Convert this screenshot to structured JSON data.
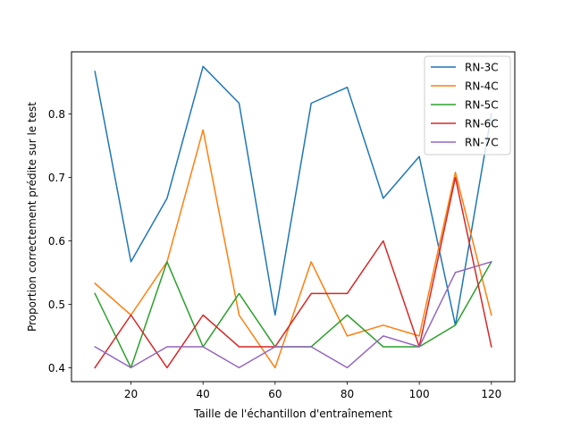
{
  "chart_data": {
    "type": "line",
    "title": "",
    "xlabel": "Taille de l'échantillon d'entraînement",
    "ylabel": "Proportion correctement prédite sur le test",
    "x": [
      10,
      20,
      30,
      40,
      50,
      60,
      70,
      80,
      90,
      100,
      110,
      120
    ],
    "xlim": [
      3.5,
      126.5
    ],
    "ylim": [
      0.378,
      0.898
    ],
    "xticks": [
      20,
      40,
      60,
      80,
      100,
      120
    ],
    "yticks": [
      0.4,
      0.5,
      0.6,
      0.7,
      0.8
    ],
    "ytick_labels": [
      "0.4",
      "0.5",
      "0.6",
      "0.7",
      "0.8"
    ],
    "grid": false,
    "legend_position": "top-right",
    "series": [
      {
        "name": "RN-3C",
        "color": "#1f77b4",
        "values": [
          0.867,
          0.567,
          0.667,
          0.875,
          0.817,
          0.483,
          0.817,
          0.842,
          0.667,
          0.733,
          0.467,
          0.8
        ]
      },
      {
        "name": "RN-4C",
        "color": "#ff7f0e",
        "values": [
          0.533,
          0.483,
          0.567,
          0.775,
          0.483,
          0.4,
          0.567,
          0.45,
          0.467,
          0.45,
          0.708,
          0.483
        ]
      },
      {
        "name": "RN-5C",
        "color": "#2ca02c",
        "values": [
          0.517,
          0.4,
          0.567,
          0.433,
          0.517,
          0.433,
          0.433,
          0.483,
          0.433,
          0.433,
          0.467,
          0.567
        ]
      },
      {
        "name": "RN-6C",
        "color": "#d62728",
        "values": [
          0.4,
          0.483,
          0.4,
          0.483,
          0.433,
          0.433,
          0.517,
          0.517,
          0.6,
          0.433,
          0.7,
          0.433
        ]
      },
      {
        "name": "RN-7C",
        "color": "#9467bd",
        "values": [
          0.433,
          0.4,
          0.433,
          0.433,
          0.4,
          0.433,
          0.433,
          0.4,
          0.45,
          0.433,
          0.55,
          0.567
        ]
      }
    ]
  }
}
